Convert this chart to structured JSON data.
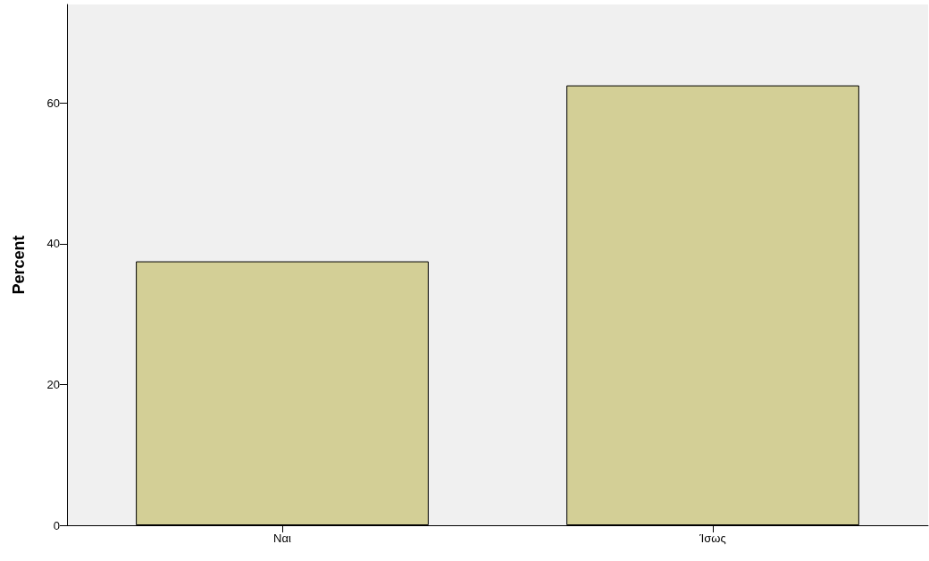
{
  "chart_data": {
    "type": "bar",
    "ylabel": "Percent",
    "categories": [
      "Ναι",
      "Ίσως"
    ],
    "values": [
      37.5,
      62.5
    ],
    "color": "#d3cf96",
    "ylim": [
      0,
      74
    ],
    "yticks": [
      0,
      20,
      40,
      60
    ],
    "grid": false
  }
}
